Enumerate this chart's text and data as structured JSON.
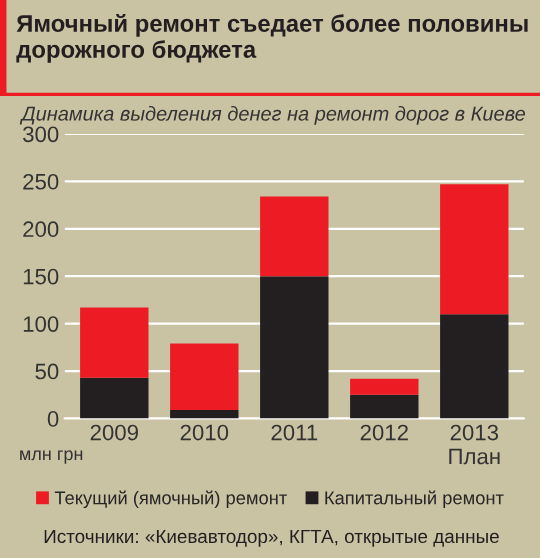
{
  "chart_data": {
    "type": "bar",
    "title": "Ямочный ремонт съедает более половины дорожного бюджета",
    "subtitle": "Динамика выделения денег на ремонт дорог в Киеве",
    "ylabel": "млн грн",
    "categories": [
      "2009",
      "2010",
      "2011",
      "2012",
      "2013\nПлан"
    ],
    "stacked": true,
    "series": [
      {
        "name": "Капитальный ремонт",
        "color": "#231f20",
        "values": [
          43,
          9,
          150,
          25,
          110
        ]
      },
      {
        "name": "Текущий (ямочный) ремонт",
        "color": "#ed1c24",
        "values": [
          74,
          70,
          84,
          17,
          137
        ]
      }
    ],
    "ylim": [
      0,
      300
    ],
    "yticks": [
      0,
      50,
      100,
      150,
      200,
      250,
      300
    ],
    "grid": "y",
    "legend": "bottom",
    "annotations": [
      "Источники: «Киевавтодор», КГТА, открытые данные"
    ]
  }
}
